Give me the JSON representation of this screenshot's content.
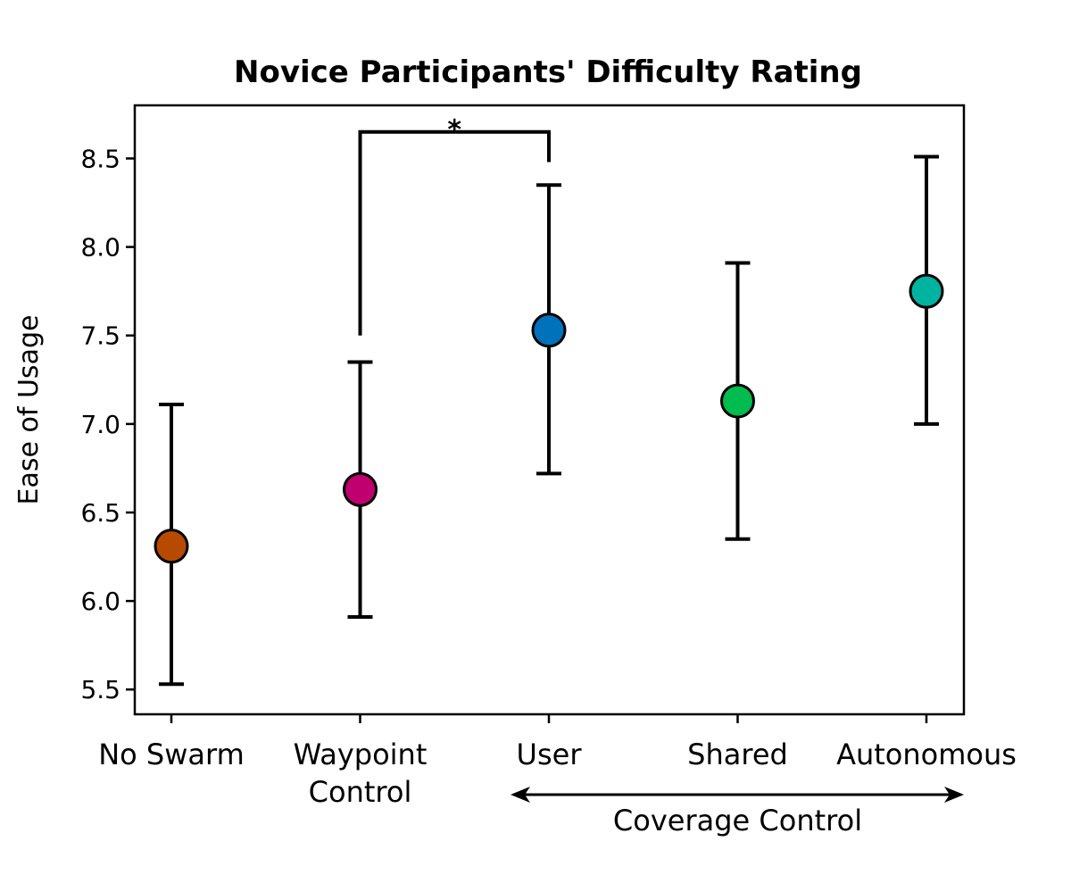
{
  "chart_data": {
    "type": "scatter",
    "title": "Novice Participants' Difficulty Rating",
    "ylabel": "Ease of Usage",
    "xlabel": "",
    "ylim": [
      5.36,
      8.8
    ],
    "yticks": [
      "5.5",
      "6.0",
      "6.5",
      "7.0",
      "7.5",
      "8.0",
      "8.5"
    ],
    "categories": [
      {
        "lines": [
          "No Swarm"
        ]
      },
      {
        "lines": [
          "Waypoint",
          "Control"
        ]
      },
      {
        "lines": [
          "User"
        ]
      },
      {
        "lines": [
          "Shared"
        ]
      },
      {
        "lines": [
          "Autonomous"
        ]
      }
    ],
    "points": [
      {
        "mean": 6.31,
        "low": 5.53,
        "high": 7.11,
        "color": "#b84a00"
      },
      {
        "mean": 6.63,
        "low": 5.91,
        "high": 7.35,
        "color": "#c0006e"
      },
      {
        "mean": 7.53,
        "low": 6.72,
        "high": 8.35,
        "color": "#0072bc"
      },
      {
        "mean": 7.13,
        "low": 6.35,
        "high": 7.91,
        "color": "#00bb4e"
      },
      {
        "mean": 7.75,
        "low": 7.0,
        "high": 8.51,
        "color": "#00b3a0"
      }
    ],
    "significance": {
      "from": 1,
      "to": 2,
      "label": "*",
      "bar_y": 8.65,
      "left_end": 7.5,
      "right_end": 8.48
    },
    "group_annotation": {
      "label": "Coverage Control",
      "from": 2,
      "to": 4
    },
    "grid": false
  }
}
